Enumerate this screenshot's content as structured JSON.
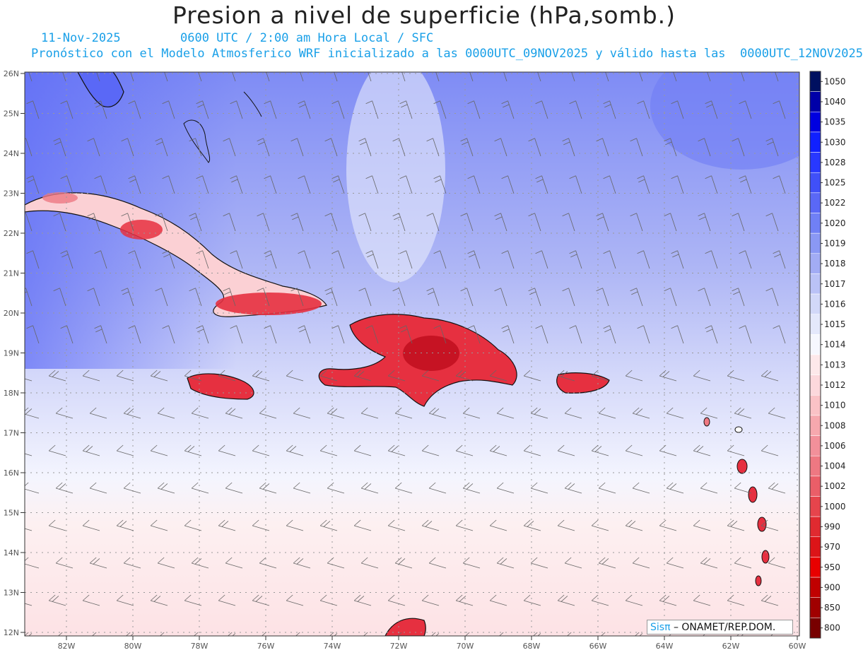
{
  "title": "Presion a nivel de superficie (hPa,somb.)",
  "subtitle": {
    "date": "11-Nov-2025",
    "time": "0600 UTC / 2:00 am Hora Local / SFC",
    "model": "Pronóstico con el Modelo Atmosferico WRF inicializado a las 0000UTC_09NOV2025 y válido hasta las  0000UTC_12NOV2025"
  },
  "axes": {
    "lat_labels": [
      "26N",
      "25N",
      "24N",
      "23N",
      "22N",
      "21N",
      "20N",
      "19N",
      "18N",
      "17N",
      "16N",
      "15N",
      "14N",
      "13N",
      "12N"
    ],
    "lon_labels": [
      "82W",
      "80W",
      "78W",
      "76W",
      "74W",
      "72W",
      "70W",
      "68W",
      "66W",
      "64W",
      "62W",
      "60W"
    ]
  },
  "colorbar": {
    "levels": [
      "1050",
      "1040",
      "1035",
      "1030",
      "1028",
      "1025",
      "1022",
      "1020",
      "1019",
      "1018",
      "1017",
      "1016",
      "1015",
      "1014",
      "1013",
      "1012",
      "1010",
      "1008",
      "1006",
      "1004",
      "1002",
      "1000",
      "990",
      "970",
      "950",
      "900",
      "850",
      "800"
    ],
    "colors": [
      "#001060",
      "#0000a8",
      "#0000e0",
      "#1020ff",
      "#2838ff",
      "#4050f8",
      "#5a68f6",
      "#7080f5",
      "#8a98f4",
      "#a2acf4",
      "#bac2f6",
      "#d2d8f8",
      "#e4e8fb",
      "#f6f7fe",
      "#fde8ea",
      "#fcd8dc",
      "#fac2c6",
      "#f6a8ae",
      "#f2909a",
      "#ee7882",
      "#ea5e68",
      "#e6444c",
      "#e02a30",
      "#dc1418",
      "#e80000",
      "#c00000",
      "#a00000",
      "#780000"
    ]
  },
  "credit": {
    "brand": "Sisπ",
    "text": "– ONAMET/REP.DOM."
  },
  "colors": {
    "subtitle": "#1aa0e8",
    "high_pressure": "#5a68f6",
    "low_pressure": "#e63040"
  }
}
